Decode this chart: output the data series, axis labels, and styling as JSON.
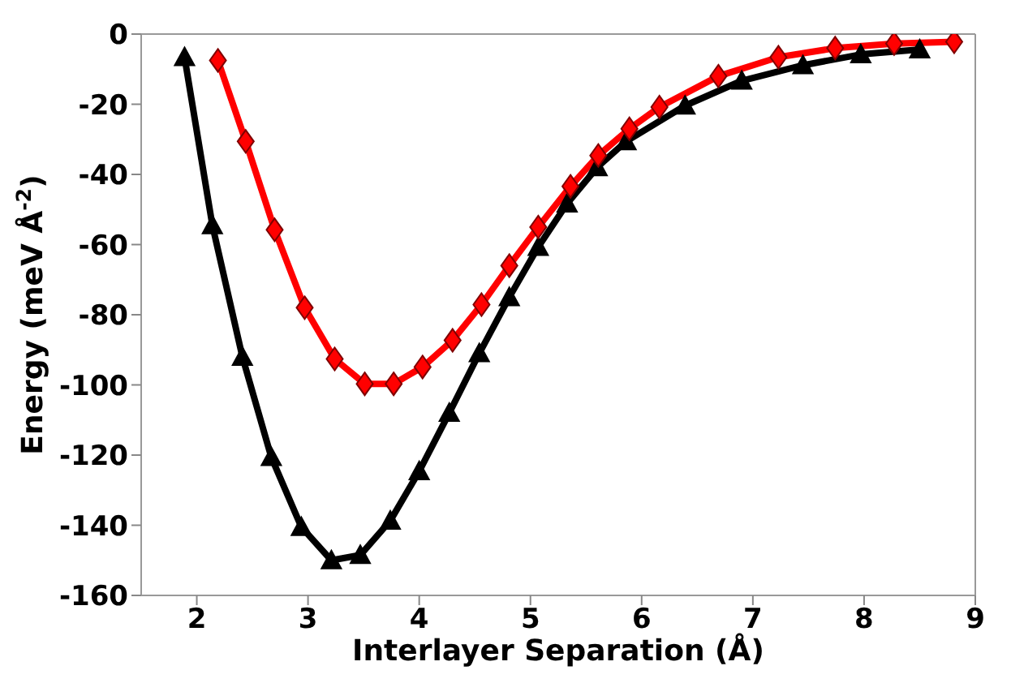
{
  "chart_data": {
    "type": "line",
    "xlabel": "Interlayer Separation (Å)",
    "ylabel": "Energy (meV Å$^{-2}$)",
    "xlim": [
      1.5,
      9
    ],
    "ylim": [
      -160,
      0
    ],
    "xticks": [
      2,
      3,
      4,
      5,
      6,
      7,
      8,
      9
    ],
    "yticks": [
      -160,
      -140,
      -120,
      -100,
      -80,
      -60,
      -40,
      -20,
      0
    ],
    "grid": false,
    "legend": false,
    "line_style": "solid",
    "series": [
      {
        "color": "#000000",
        "marker": "triangle",
        "x": [
          1.89,
          2.14,
          2.41,
          2.67,
          2.94,
          3.21,
          3.47,
          3.74,
          4.0,
          4.27,
          4.54,
          4.81,
          5.07,
          5.33,
          5.6,
          5.86,
          6.39,
          6.9,
          7.45,
          7.97,
          8.5
        ],
        "values": [
          -6.6,
          -54.5,
          -92,
          -120.6,
          -140.5,
          -150,
          -148.5,
          -138.7,
          -124.6,
          -108,
          -91,
          -75,
          -60.7,
          -48.3,
          -38,
          -30.6,
          -20.4,
          -13.3,
          -8.9,
          -5.8,
          -4.4
        ]
      },
      {
        "color": "#ff0000",
        "marker": "diamond",
        "x": [
          2.19,
          2.44,
          2.7,
          2.97,
          3.24,
          3.51,
          3.77,
          4.03,
          4.3,
          4.56,
          4.81,
          5.07,
          5.36,
          5.61,
          5.89,
          6.16,
          6.69,
          7.23,
          7.74,
          8.27,
          8.81
        ],
        "values": [
          -7.5,
          -30.6,
          -55.8,
          -78,
          -92.6,
          -99.7,
          -99.7,
          -94.9,
          -87.3,
          -77.1,
          -66,
          -55,
          -43.4,
          -34.6,
          -27,
          -20.8,
          -12,
          -6.6,
          -4,
          -2.7,
          -2.2
        ]
      }
    ]
  }
}
